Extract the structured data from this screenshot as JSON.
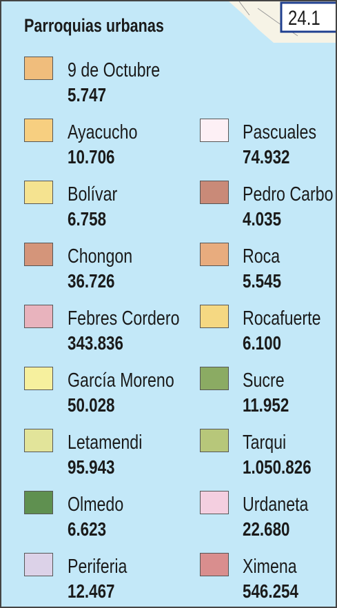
{
  "map_label": "24.1",
  "legend": {
    "title": "Parroquias urbanas",
    "items": [
      {
        "label": "9 de Octubre",
        "value": "5.747",
        "color": "#f0bd7c"
      },
      {
        "label": "Ayacucho",
        "value": "10.706",
        "color": "#f7cf80"
      },
      {
        "label": "Bolívar",
        "value": "6.758",
        "color": "#f5e390"
      },
      {
        "label": "Chongon",
        "value": "36.726",
        "color": "#d4957a"
      },
      {
        "label": "Febres Cordero",
        "value": "343.836",
        "color": "#e8b3bd"
      },
      {
        "label": "García Moreno",
        "value": "50.028",
        "color": "#f6f09e"
      },
      {
        "label": "Letamendi",
        "value": "95.943",
        "color": "#e2e49a"
      },
      {
        "label": "Olmedo",
        "value": "6.623",
        "color": "#5f9050"
      },
      {
        "label": "Periferia",
        "value": "12.467",
        "color": "#dcd2e8"
      },
      {
        "label": "Pascuales",
        "value": "74.932",
        "color": "#fdf0f5"
      },
      {
        "label": "Pedro Carbo",
        "value": "4.035",
        "color": "#c98a78"
      },
      {
        "label": "Roca",
        "value": "5.545",
        "color": "#e8ac7e"
      },
      {
        "label": "Rocafuerte",
        "value": "6.100",
        "color": "#f5d882"
      },
      {
        "label": "Sucre",
        "value": "11.952",
        "color": "#8bab63"
      },
      {
        "label": "Tarqui",
        "value": "1.050.826",
        "color": "#b7c77a"
      },
      {
        "label": "Urdaneta",
        "value": "22.680",
        "color": "#f4cfe0"
      },
      {
        "label": "Ximena",
        "value": "546.254",
        "color": "#d98e8e"
      }
    ]
  }
}
